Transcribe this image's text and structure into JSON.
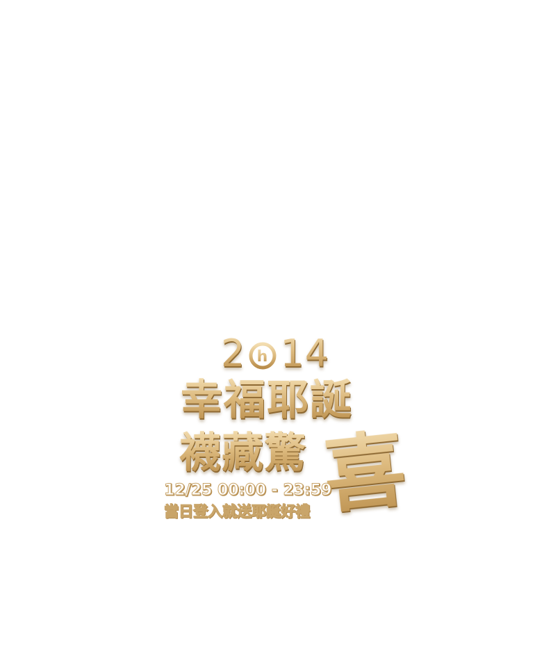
{
  "promo": {
    "year_left": "2",
    "year_badge_letter": "h",
    "year_right": "14",
    "line1": "幸福耶誕",
    "line2": "襪藏驚",
    "big_char": "喜",
    "date": "12/25 00:00 - 23:59",
    "subtitle": "當日登入就送耶誕好禮"
  },
  "colors": {
    "gold_light": "#f3ddb0",
    "gold_mid": "#dcb97d",
    "gold_dark": "#b98d4b",
    "background": "#ffffff"
  }
}
